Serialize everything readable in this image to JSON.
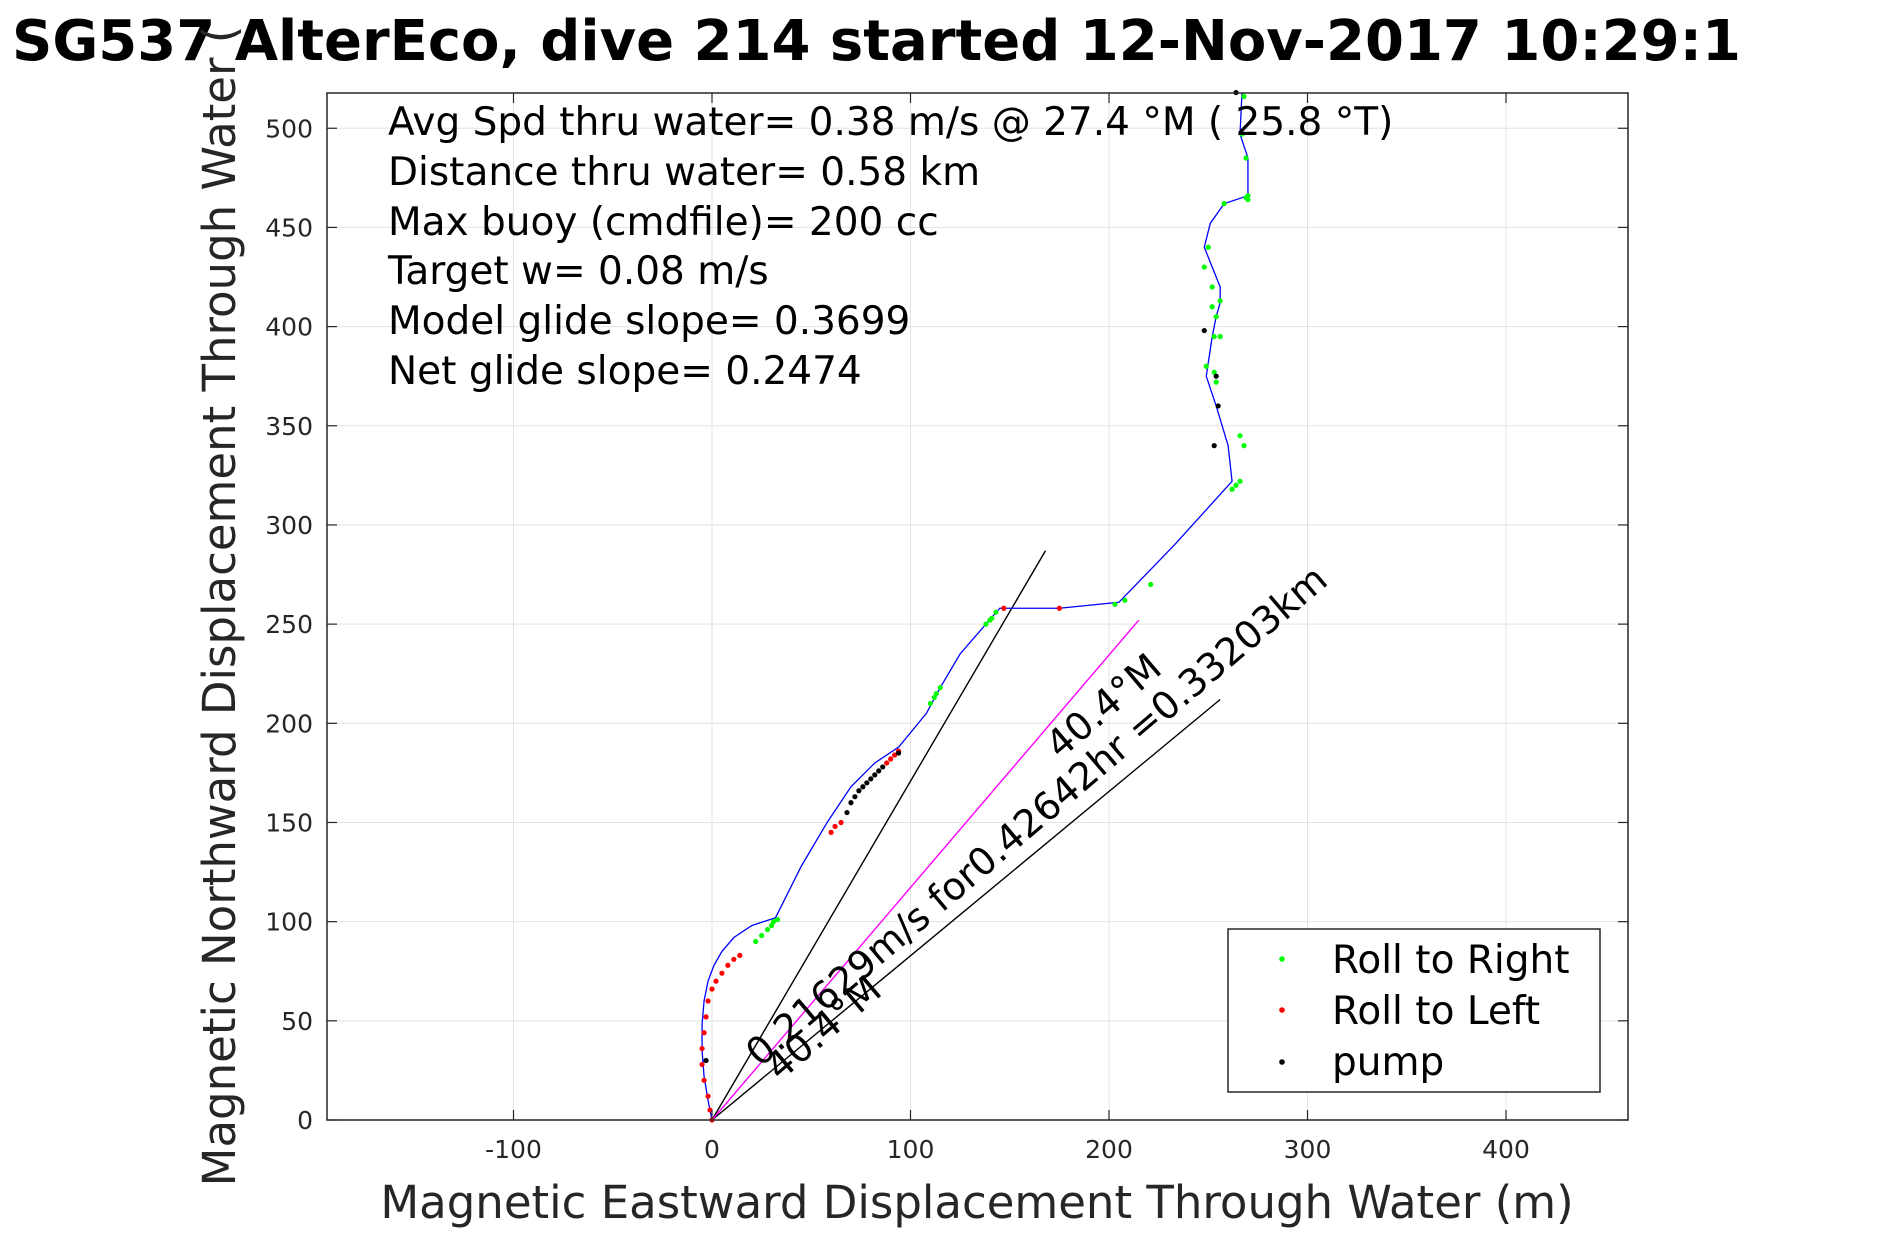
{
  "chart_data": {
    "type": "line",
    "title": "SG537 AlterEco, dive 214 started 12-Nov-2017 10:29:1",
    "xlabel": "Magnetic Eastward Displacement Through Water (m)",
    "ylabel": "Magnetic Northward Displacement Through Water (",
    "xlim": [
      -195,
      460
    ],
    "ylim": [
      0,
      518
    ],
    "xticks": [
      "-100",
      "0",
      "100",
      "200",
      "300",
      "400"
    ],
    "xtick_values": [
      -100,
      0,
      100,
      200,
      300,
      400
    ],
    "yticks": [
      "0",
      "50",
      "100",
      "150",
      "200",
      "250",
      "300",
      "350",
      "400",
      "450",
      "500"
    ],
    "ytick_values": [
      0,
      50,
      100,
      150,
      200,
      250,
      300,
      350,
      400,
      450,
      500
    ],
    "grid": true,
    "annotations": [
      "Avg Spd thru water=  0.38 m/s @  27.4 °M ( 25.8 °T)",
      "Distance thru water=  0.58 km",
      "Max buoy (cmdfile)= 200 cc",
      "Target w= 0.08 m/s",
      "Model glide slope= 0.3699",
      "Net glide slope= 0.2474"
    ],
    "rotated_labels": [
      {
        "text": "0.21629m/s for0.42642hr =0.33203km",
        "angle": 40.4
      },
      {
        "text": "40.4°M",
        "angle": 40.4
      },
      {
        "text": "40.4°M",
        "angle": 40.4
      }
    ],
    "track": {
      "color": "#0000ff",
      "x": [
        0,
        -2,
        -4,
        -5,
        -5,
        -4,
        -2,
        1,
        5,
        11,
        20,
        32,
        45,
        58,
        70,
        82,
        94,
        108,
        115,
        125,
        138,
        145,
        175,
        205,
        233,
        262,
        260,
        254,
        249,
        252,
        254,
        256,
        256,
        252,
        248,
        251,
        258,
        270,
        270,
        266,
        267
      ],
      "y": [
        0,
        10,
        22,
        35,
        48,
        60,
        70,
        78,
        85,
        92,
        98,
        102,
        128,
        150,
        168,
        180,
        188,
        205,
        218,
        235,
        250,
        258,
        258,
        261,
        290,
        322,
        340,
        360,
        375,
        395,
        405,
        412,
        420,
        430,
        440,
        452,
        462,
        466,
        485,
        497,
        518
      ]
    },
    "reference_lines": [
      {
        "name": "model glide direction",
        "x": [
          0,
          168
        ],
        "y": [
          0,
          287
        ],
        "color": "#000000"
      },
      {
        "name": "net track direction",
        "x": [
          0,
          256
        ],
        "y": [
          0,
          212
        ],
        "color": "#000000"
      },
      {
        "name": "current",
        "x": [
          0,
          215
        ],
        "y": [
          0,
          252
        ],
        "color": "#ff00ff"
      }
    ],
    "series": [
      {
        "name": "Roll to Right",
        "color": "#00ff00",
        "x": [
          22,
          25,
          28,
          30,
          31,
          33,
          110,
          112,
          113,
          115,
          138,
          140,
          141,
          143,
          203,
          208,
          221,
          262,
          264,
          266,
          268,
          266,
          254,
          253,
          249,
          253,
          254,
          252,
          256,
          256,
          252,
          248,
          250,
          258,
          269,
          270,
          270,
          269,
          267,
          268
        ],
        "y": [
          90,
          93,
          96,
          98,
          100,
          101,
          210,
          213,
          215,
          218,
          250,
          252,
          253,
          256,
          260,
          262,
          270,
          318,
          320,
          322,
          340,
          345,
          372,
          377,
          380,
          395,
          405,
          410,
          395,
          413,
          420,
          430,
          440,
          462,
          465,
          466,
          464,
          485,
          497,
          516
        ]
      },
      {
        "name": "Roll to Left",
        "color": "#ff0000",
        "x": [
          0,
          -1,
          -2,
          -4,
          -5,
          -5,
          -4,
          -3,
          -2,
          0,
          2,
          5,
          8,
          11,
          14,
          60,
          62,
          65,
          88,
          90,
          92,
          94,
          147,
          175
        ],
        "y": [
          0,
          5,
          12,
          20,
          28,
          36,
          44,
          52,
          60,
          66,
          70,
          74,
          78,
          81,
          83,
          145,
          148,
          150,
          180,
          182,
          184,
          186,
          258,
          258
        ]
      },
      {
        "name": "pump",
        "color": "#000000",
        "x": [
          -3,
          68,
          70,
          72,
          74,
          76,
          78,
          80,
          82,
          84,
          86,
          94,
          255,
          254,
          253,
          264,
          248
        ],
        "y": [
          30,
          155,
          160,
          163,
          166,
          168,
          170,
          172,
          174,
          176,
          178,
          185,
          360,
          375,
          340,
          518,
          398
        ]
      }
    ],
    "legend": {
      "placement": "bottom-right",
      "entries": [
        "Roll to Right",
        "Roll to Left",
        "pump"
      ]
    }
  }
}
